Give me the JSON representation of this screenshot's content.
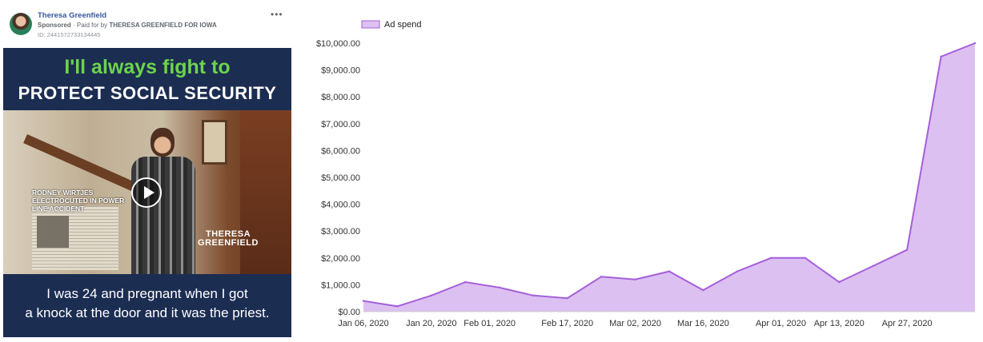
{
  "ad": {
    "page_name": "Theresa Greenfield",
    "sponsored_label": "Sponsored",
    "paid_for_prefix": "Paid for by",
    "paid_for_by": "THERESA GREENFIELD FOR IOWA",
    "ad_id": "ID: 2441572733134445",
    "headline_line1": "I'll always fight to",
    "headline_line2": "PROTECT SOCIAL SECURITY",
    "clip_label": "RODNEY WIRTJES ELECTROCUTED IN POWER LINE ACCIDENT",
    "watermark": "THERESA GREENFIELD",
    "caption_line1": "I was 24 and pregnant when I got",
    "caption_line2": "a knock at the door and it was the priest."
  },
  "chart_data": {
    "type": "area",
    "legend": {
      "label": "Ad spend",
      "position": "top-left"
    },
    "color": "#a55fd9",
    "fill_color": "#dcc0f2",
    "x_dates": [
      "2020-01-06",
      "2020-01-13",
      "2020-01-20",
      "2020-01-27",
      "2020-02-03",
      "2020-02-10",
      "2020-02-17",
      "2020-02-24",
      "2020-03-02",
      "2020-03-09",
      "2020-03-16",
      "2020-03-23",
      "2020-03-30",
      "2020-04-06",
      "2020-04-13",
      "2020-04-20",
      "2020-04-27",
      "2020-05-04",
      "2020-05-11"
    ],
    "values": [
      400,
      200,
      600,
      1100,
      900,
      600,
      500,
      1300,
      1200,
      1500,
      800,
      1500,
      2000,
      2000,
      1100,
      1700,
      2300,
      9500,
      10000
    ],
    "x_tick_labels": [
      "Jan 06, 2020",
      "Jan 20, 2020",
      "Feb 01, 2020",
      "Feb 17, 2020",
      "Mar 02, 2020",
      "Mar 16, 2020",
      "Apr 01, 2020",
      "Apr 13, 2020",
      "Apr 27, 2020"
    ],
    "x_tick_dates": [
      "2020-01-06",
      "2020-01-20",
      "2020-02-01",
      "2020-02-17",
      "2020-03-02",
      "2020-03-16",
      "2020-04-01",
      "2020-04-13",
      "2020-04-27"
    ],
    "y_tick_labels": [
      "$0.00",
      "$1,000.00",
      "$2,000.00",
      "$3,000.00",
      "$4,000.00",
      "$5,000.00",
      "$6,000.00",
      "$7,000.00",
      "$8,000.00",
      "$9,000.00",
      "$10,000.00"
    ],
    "y_tick_values": [
      0,
      1000,
      2000,
      3000,
      4000,
      5000,
      6000,
      7000,
      8000,
      9000,
      10000
    ],
    "ylim": [
      0,
      10000
    ],
    "grid": false
  }
}
